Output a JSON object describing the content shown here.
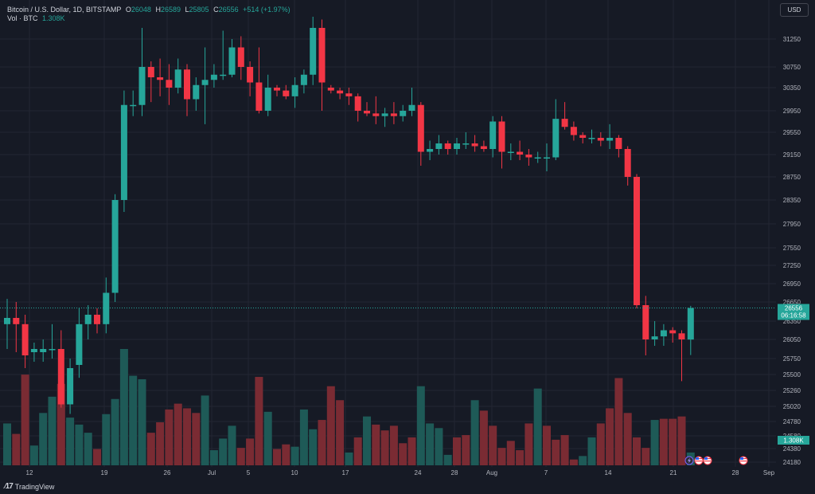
{
  "header": {
    "symbol_title": "Bitcoin / U.S. Dollar, 1D, BITSTAMP",
    "open_label": "O",
    "open_value": "26048",
    "high_label": "H",
    "high_value": "26589",
    "low_label": "L",
    "low_value": "25805",
    "close_label": "C",
    "close_value": "26556",
    "change": "+514 (+1.97%)",
    "volume_label": "Vol · BTC",
    "volume_value": "1.308K"
  },
  "currency_button": "USD",
  "last_price": {
    "price": "26556",
    "countdown": "06:16:58",
    "volume": "1.308K"
  },
  "branding": "TradingView",
  "colors": {
    "up": "#26A69A",
    "down": "#F23645",
    "up_volume": "#1E5A57",
    "down_volume": "#7A2B33",
    "background": "#161A25",
    "grid": "#232632",
    "text": "#B2B5BE"
  },
  "event_icons": [
    "lightning-icon",
    "us-flag-icon",
    "us-flag-icon",
    "us-flag-icon"
  ],
  "chart_data": {
    "type": "candlestick",
    "title": "Bitcoin / U.S. Dollar, 1D, BITSTAMP",
    "y_axis_ticks": [
      "31250",
      "30750",
      "30350",
      "29950",
      "29550",
      "29150",
      "28750",
      "28350",
      "27950",
      "27550",
      "27250",
      "26950",
      "26650",
      "26350",
      "26050",
      "25750",
      "25500",
      "25260",
      "25020",
      "24780",
      "24580",
      "24380",
      "24180"
    ],
    "x_axis_ticks": [
      "12",
      "19",
      "26",
      "Jul",
      "5",
      "10",
      "17",
      "24",
      "28",
      "Aug",
      "7",
      "14",
      "21",
      "28",
      "Sep"
    ],
    "candles": [
      {
        "o": 26300,
        "h": 26700,
        "l": 25900,
        "c": 26400
      },
      {
        "o": 26400,
        "h": 26650,
        "l": 25850,
        "c": 26300
      },
      {
        "o": 26300,
        "h": 26450,
        "l": 25600,
        "c": 25800
      },
      {
        "o": 25850,
        "h": 26000,
        "l": 25700,
        "c": 25900
      },
      {
        "o": 25850,
        "h": 26050,
        "l": 25700,
        "c": 25900
      },
      {
        "o": 25900,
        "h": 26300,
        "l": 25750,
        "c": 25900
      },
      {
        "o": 25900,
        "h": 26200,
        "l": 25000,
        "c": 25050
      },
      {
        "o": 25050,
        "h": 25750,
        "l": 24900,
        "c": 25600
      },
      {
        "o": 25650,
        "h": 26550,
        "l": 25450,
        "c": 26300
      },
      {
        "o": 26300,
        "h": 26600,
        "l": 26050,
        "c": 26450
      },
      {
        "o": 26450,
        "h": 26550,
        "l": 26150,
        "c": 26300
      },
      {
        "o": 26300,
        "h": 27050,
        "l": 26150,
        "c": 26800
      },
      {
        "o": 26800,
        "h": 28450,
        "l": 26650,
        "c": 28350
      },
      {
        "o": 28350,
        "h": 30300,
        "l": 28150,
        "c": 30050
      },
      {
        "o": 30050,
        "h": 30300,
        "l": 29850,
        "c": 30050
      },
      {
        "o": 30050,
        "h": 31450,
        "l": 29850,
        "c": 30750
      },
      {
        "o": 30750,
        "h": 30850,
        "l": 30100,
        "c": 30550
      },
      {
        "o": 30550,
        "h": 30900,
        "l": 30200,
        "c": 30500
      },
      {
        "o": 30500,
        "h": 30800,
        "l": 30050,
        "c": 30350
      },
      {
        "o": 30350,
        "h": 30900,
        "l": 30250,
        "c": 30700
      },
      {
        "o": 30700,
        "h": 30800,
        "l": 29850,
        "c": 30150
      },
      {
        "o": 30150,
        "h": 30550,
        "l": 29950,
        "c": 30400
      },
      {
        "o": 30400,
        "h": 31100,
        "l": 29700,
        "c": 30500
      },
      {
        "o": 30500,
        "h": 30800,
        "l": 30350,
        "c": 30600
      },
      {
        "o": 30600,
        "h": 31400,
        "l": 30500,
        "c": 30600
      },
      {
        "o": 30600,
        "h": 31250,
        "l": 30550,
        "c": 31100
      },
      {
        "o": 31100,
        "h": 31300,
        "l": 30500,
        "c": 30750
      },
      {
        "o": 30750,
        "h": 30850,
        "l": 30200,
        "c": 30450
      },
      {
        "o": 30450,
        "h": 31100,
        "l": 29900,
        "c": 29950
      },
      {
        "o": 29950,
        "h": 30600,
        "l": 29850,
        "c": 30350
      },
      {
        "o": 30350,
        "h": 30400,
        "l": 30200,
        "c": 30300
      },
      {
        "o": 30300,
        "h": 30400,
        "l": 30150,
        "c": 30200
      },
      {
        "o": 30200,
        "h": 30550,
        "l": 30000,
        "c": 30400
      },
      {
        "o": 30400,
        "h": 30700,
        "l": 30250,
        "c": 30600
      },
      {
        "o": 30600,
        "h": 31650,
        "l": 30400,
        "c": 31450
      },
      {
        "o": 31450,
        "h": 31600,
        "l": 29950,
        "c": 30450
      },
      {
        "o": 30350,
        "h": 30400,
        "l": 30250,
        "c": 30300
      },
      {
        "o": 30300,
        "h": 30350,
        "l": 30150,
        "c": 30250
      },
      {
        "o": 30250,
        "h": 30350,
        "l": 30050,
        "c": 30200
      },
      {
        "o": 30200,
        "h": 30250,
        "l": 29750,
        "c": 29950
      },
      {
        "o": 29950,
        "h": 30100,
        "l": 29850,
        "c": 29900
      },
      {
        "o": 29900,
        "h": 30200,
        "l": 29700,
        "c": 29850
      },
      {
        "o": 29850,
        "h": 30000,
        "l": 29650,
        "c": 29900
      },
      {
        "o": 29900,
        "h": 30100,
        "l": 29700,
        "c": 29850
      },
      {
        "o": 29850,
        "h": 30050,
        "l": 29750,
        "c": 29950
      },
      {
        "o": 29950,
        "h": 30350,
        "l": 29850,
        "c": 30050
      },
      {
        "o": 30050,
        "h": 30100,
        "l": 28950,
        "c": 29200
      },
      {
        "o": 29200,
        "h": 29400,
        "l": 29050,
        "c": 29250
      },
      {
        "o": 29250,
        "h": 29500,
        "l": 29150,
        "c": 29350
      },
      {
        "o": 29350,
        "h": 29400,
        "l": 29150,
        "c": 29250
      },
      {
        "o": 29250,
        "h": 29450,
        "l": 29150,
        "c": 29350
      },
      {
        "o": 29350,
        "h": 29550,
        "l": 29250,
        "c": 29350
      },
      {
        "o": 29350,
        "h": 29500,
        "l": 29200,
        "c": 29300
      },
      {
        "o": 29300,
        "h": 29400,
        "l": 29200,
        "c": 29250
      },
      {
        "o": 29250,
        "h": 29850,
        "l": 29100,
        "c": 29750
      },
      {
        "o": 29750,
        "h": 29850,
        "l": 28900,
        "c": 29200
      },
      {
        "o": 29200,
        "h": 29350,
        "l": 29050,
        "c": 29200
      },
      {
        "o": 29200,
        "h": 29400,
        "l": 29050,
        "c": 29150
      },
      {
        "o": 29150,
        "h": 29250,
        "l": 28950,
        "c": 29100
      },
      {
        "o": 29100,
        "h": 29200,
        "l": 29000,
        "c": 29100
      },
      {
        "o": 29100,
        "h": 29350,
        "l": 28850,
        "c": 29100
      },
      {
        "o": 29100,
        "h": 30150,
        "l": 29050,
        "c": 29800
      },
      {
        "o": 29800,
        "h": 30100,
        "l": 29600,
        "c": 29650
      },
      {
        "o": 29650,
        "h": 29750,
        "l": 29400,
        "c": 29500
      },
      {
        "o": 29500,
        "h": 29550,
        "l": 29350,
        "c": 29450
      },
      {
        "o": 29450,
        "h": 29600,
        "l": 29350,
        "c": 29450
      },
      {
        "o": 29450,
        "h": 29550,
        "l": 29300,
        "c": 29400
      },
      {
        "o": 29400,
        "h": 29700,
        "l": 29250,
        "c": 29450
      },
      {
        "o": 29450,
        "h": 29500,
        "l": 29100,
        "c": 29250
      },
      {
        "o": 29250,
        "h": 29300,
        "l": 28600,
        "c": 28750
      },
      {
        "o": 28750,
        "h": 28800,
        "l": 26550,
        "c": 26600
      },
      {
        "o": 26600,
        "h": 26750,
        "l": 25800,
        "c": 26050
      },
      {
        "o": 26050,
        "h": 26350,
        "l": 25950,
        "c": 26100
      },
      {
        "o": 26100,
        "h": 26300,
        "l": 25950,
        "c": 26200
      },
      {
        "o": 26200,
        "h": 26250,
        "l": 26000,
        "c": 26150
      },
      {
        "o": 26150,
        "h": 26200,
        "l": 25400,
        "c": 26050
      },
      {
        "o": 26048,
        "h": 26589,
        "l": 25805,
        "c": 26556
      }
    ],
    "volume_relative": [
      0.36,
      0.27,
      0.78,
      0.17,
      0.45,
      0.59,
      0.7,
      0.41,
      0.35,
      0.28,
      0.14,
      0.44,
      0.57,
      1.0,
      0.77,
      0.74,
      0.28,
      0.37,
      0.48,
      0.53,
      0.49,
      0.45,
      0.6,
      0.13,
      0.23,
      0.34,
      0.15,
      0.23,
      0.76,
      0.46,
      0.14,
      0.18,
      0.16,
      0.48,
      0.31,
      0.39,
      0.68,
      0.56,
      0.11,
      0.24,
      0.42,
      0.35,
      0.3,
      0.34,
      0.19,
      0.24,
      0.68,
      0.36,
      0.32,
      0.09,
      0.24,
      0.26,
      0.56,
      0.47,
      0.34,
      0.15,
      0.21,
      0.13,
      0.36,
      0.66,
      0.34,
      0.22,
      0.26,
      0.05,
      0.08,
      0.24,
      0.36,
      0.49,
      0.75,
      0.45,
      0.24,
      0.15,
      0.39,
      0.4,
      0.4,
      0.42,
      0.11
    ],
    "volume_is_up": [
      true,
      false,
      false,
      true,
      true,
      true,
      false,
      true,
      true,
      true,
      false,
      true,
      true,
      true,
      true,
      true,
      false,
      false,
      false,
      false,
      false,
      false,
      true,
      true,
      true,
      true,
      false,
      false,
      false,
      true,
      false,
      false,
      true,
      true,
      true,
      false,
      false,
      false,
      true,
      false,
      true,
      false,
      false,
      false,
      false,
      false,
      true,
      true,
      true,
      true,
      false,
      false,
      true,
      false,
      false,
      false,
      false,
      false,
      false,
      true,
      false,
      false,
      false,
      false,
      true,
      true,
      false,
      false,
      false,
      false,
      false,
      false,
      true,
      false,
      false,
      false,
      true
    ],
    "last_price_line": 26556,
    "grid": true
  }
}
